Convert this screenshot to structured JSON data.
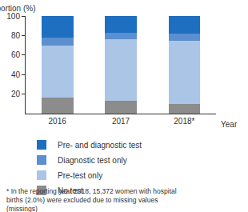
{
  "chart_data": {
    "type": "bar",
    "stacked": true,
    "y_label": "Proportion (%)",
    "x_label": "Year",
    "categories": [
      "2016",
      "2017",
      "2018*"
    ],
    "series": [
      {
        "name": "No test",
        "color": "#8c8c8c",
        "values": [
          16,
          13,
          10
        ]
      },
      {
        "name": "Pre-test only",
        "color": "#aac5e6",
        "values": [
          54,
          63,
          65
        ]
      },
      {
        "name": "Diagnostic test only",
        "color": "#5b8fd0",
        "values": [
          8,
          7,
          7
        ]
      },
      {
        "name": "Pre- and diagnostic test",
        "color": "#1e6fc0",
        "values": [
          22,
          17,
          18
        ]
      }
    ],
    "ylim": [
      0,
      100
    ],
    "yticks": [
      20,
      40,
      60,
      80,
      100
    ],
    "grid": false,
    "legend": "bottom",
    "footnote": "* In the reporting year 2018, 15,372 women with hospital births (2.0%) were excluded due to missing values (missings)"
  }
}
